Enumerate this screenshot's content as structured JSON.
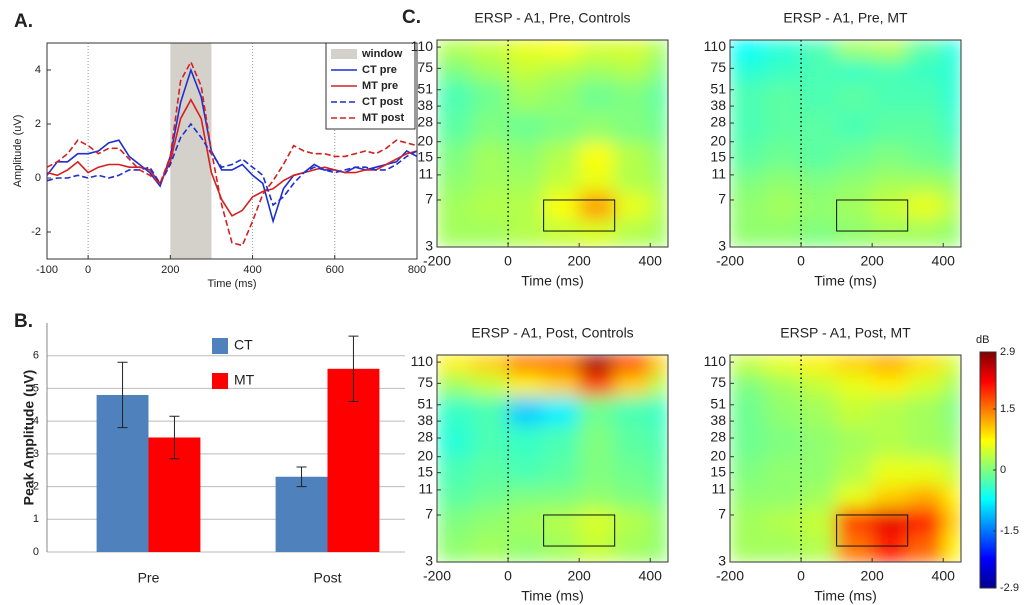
{
  "chart_data": [
    {
      "type": "line",
      "panel_label": "A.",
      "xlabel": "Time (ms)",
      "ylabel": "Amplitude (uV)",
      "xlim": [
        -100,
        800
      ],
      "xticks": [
        -100,
        0,
        200,
        400,
        600,
        800
      ],
      "ylim": [
        -3,
        5
      ],
      "yticks": [
        -2,
        0,
        2,
        4
      ],
      "vlines": [
        0,
        400,
        600
      ],
      "window": {
        "name": "window",
        "range": [
          200,
          300
        ],
        "color": "#d4d0ca"
      },
      "x": [
        -100,
        -75,
        -50,
        -25,
        0,
        25,
        50,
        75,
        100,
        125,
        150,
        175,
        200,
        225,
        250,
        275,
        300,
        325,
        350,
        375,
        400,
        425,
        450,
        475,
        500,
        525,
        550,
        575,
        600,
        625,
        650,
        675,
        700,
        725,
        750,
        775,
        800
      ],
      "series": [
        {
          "name": "CT pre",
          "color": "#1f2fd0",
          "dashed": false,
          "values": [
            0.1,
            0.6,
            0.6,
            0.9,
            0.9,
            1.0,
            1.3,
            1.4,
            0.8,
            0.5,
            0.2,
            -0.3,
            0.8,
            2.8,
            4.0,
            3.0,
            1.0,
            0.3,
            0.3,
            0.5,
            0.1,
            -0.2,
            -1.6,
            -0.4,
            0.1,
            0.2,
            0.5,
            0.3,
            0.3,
            0.2,
            0.4,
            0.3,
            0.4,
            0.5,
            0.6,
            1.0,
            0.8
          ]
        },
        {
          "name": "MT pre",
          "color": "#d42020",
          "dashed": false,
          "values": [
            0.2,
            0.1,
            0.3,
            0.6,
            0.2,
            0.4,
            0.5,
            0.5,
            0.4,
            0.4,
            0.3,
            -0.2,
            0.6,
            2.2,
            2.9,
            2.2,
            0.2,
            -0.8,
            -1.4,
            -1.2,
            -0.7,
            -0.5,
            -0.4,
            -0.1,
            0.1,
            0.2,
            0.3,
            0.4,
            0.3,
            0.2,
            0.2,
            0.3,
            0.3,
            0.5,
            0.7,
            0.9,
            1.0
          ]
        },
        {
          "name": "CT post",
          "color": "#1f2fd0",
          "dashed": true,
          "values": [
            -0.1,
            0,
            0,
            0.1,
            0,
            0.1,
            0,
            0.1,
            0.3,
            0.3,
            0.4,
            -0.2,
            0.5,
            1.5,
            2.0,
            1.5,
            0.9,
            0.4,
            0.5,
            0.7,
            0.4,
            0.1,
            -1.0,
            -0.7,
            -0.2,
            0.2,
            0.4,
            0.3,
            0.2,
            0.3,
            0.4,
            0.4,
            0.3,
            0.3,
            0.5,
            0.8,
            1.0
          ]
        },
        {
          "name": "MT post",
          "color": "#d42020",
          "dashed": true,
          "values": [
            0.4,
            0.6,
            0.9,
            1.4,
            1.2,
            0.9,
            1.1,
            1.1,
            0.7,
            0.3,
            0.1,
            -0.2,
            0.8,
            3.6,
            4.3,
            3.4,
            1.0,
            -1.0,
            -2.4,
            -2.5,
            -1.6,
            -0.6,
            -0.1,
            0.5,
            1.2,
            1.0,
            0.9,
            0.9,
            0.8,
            0.8,
            0.9,
            1.0,
            0.9,
            1.1,
            1.4,
            1.3,
            1.2
          ]
        }
      ]
    },
    {
      "type": "bar",
      "panel_label": "B.",
      "ylabel": "Peak Amplitude (uV)",
      "categories": [
        "Pre",
        "Post"
      ],
      "ylim": [
        0,
        7
      ],
      "yticks": [
        0,
        1,
        2,
        3,
        4,
        5,
        6
      ],
      "grid": true,
      "series": [
        {
          "name": "CT",
          "color": "#4f81bd",
          "values": [
            4.8,
            2.3
          ],
          "errors": [
            1.0,
            0.3
          ]
        },
        {
          "name": "MT",
          "color": "#ff0000",
          "values": [
            3.5,
            5.6
          ],
          "errors": [
            0.65,
            1.0
          ]
        }
      ]
    },
    {
      "type": "heatmap",
      "panel_label": "C.",
      "title": "ERSP - A1, Pre, Controls",
      "xlabel": "Time (ms)",
      "xlim": [
        -200,
        450
      ],
      "xticks": [
        -200,
        0,
        200,
        400
      ],
      "ylim": [
        3,
        125
      ],
      "yticks": [
        3,
        7,
        11,
        15,
        20,
        28,
        38,
        51,
        75,
        110
      ],
      "log_y": true,
      "vline": 0,
      "box": {
        "x": [
          100,
          300
        ],
        "y": [
          4,
          7
        ]
      },
      "clim": [
        -2.9,
        2.9
      ],
      "x_edges": [
        -200,
        -100,
        0,
        100,
        200,
        300,
        400,
        450
      ],
      "y_edges": [
        3,
        5,
        8,
        12,
        20,
        35,
        60,
        90,
        125
      ],
      "z": [
        [
          0.2,
          0.2,
          0.3,
          0.4,
          0.5,
          0.3,
          0.2
        ],
        [
          0.2,
          0.3,
          0.3,
          0.7,
          1.3,
          0.6,
          0.3
        ],
        [
          0.1,
          0.2,
          0.2,
          0.4,
          0.6,
          0.3,
          0.2
        ],
        [
          0,
          0.2,
          0.1,
          0.3,
          0.7,
          0.3,
          0.1
        ],
        [
          -0.2,
          0,
          -0.1,
          0,
          0.1,
          0,
          -0.1
        ],
        [
          -0.3,
          -0.1,
          0.2,
          0.1,
          -0.1,
          0,
          -0.2
        ],
        [
          0,
          0.2,
          0.4,
          0.3,
          0.2,
          0.3,
          0
        ],
        [
          0.3,
          0.4,
          0.6,
          0.7,
          0.5,
          0.5,
          0.2
        ]
      ]
    },
    {
      "type": "heatmap",
      "title": "ERSP - A1, Pre, MT",
      "xlabel": "Time (ms)",
      "xlim": [
        -200,
        450
      ],
      "xticks": [
        -200,
        0,
        200,
        400
      ],
      "ylim": [
        3,
        125
      ],
      "yticks": [
        3,
        7,
        11,
        15,
        20,
        28,
        38,
        51,
        75,
        110
      ],
      "log_y": true,
      "vline": 0,
      "box": {
        "x": [
          100,
          300
        ],
        "y": [
          4,
          7
        ]
      },
      "clim": [
        -2.9,
        2.9
      ],
      "x_edges": [
        -200,
        -100,
        0,
        100,
        200,
        300,
        400,
        450
      ],
      "y_edges": [
        3,
        5,
        8,
        12,
        20,
        35,
        60,
        90,
        125
      ],
      "z": [
        [
          0.1,
          0.1,
          0,
          0.1,
          0.2,
          0.2,
          0.1
        ],
        [
          0.1,
          0.2,
          0.1,
          0.2,
          0.4,
          0.6,
          0.3
        ],
        [
          0,
          0.1,
          0,
          0.1,
          0.2,
          0.2,
          0.1
        ],
        [
          -0.2,
          -0.1,
          -0.2,
          -0.1,
          0,
          -0.1,
          -0.2
        ],
        [
          -0.3,
          -0.2,
          -0.2,
          -0.3,
          -0.2,
          -0.2,
          -0.4
        ],
        [
          -0.3,
          -0.2,
          -0.3,
          -0.2,
          -0.3,
          -0.3,
          -0.5
        ],
        [
          -0.5,
          -0.4,
          -0.3,
          -0.4,
          -0.3,
          -0.4,
          -0.5
        ],
        [
          -0.7,
          -0.5,
          -0.3,
          0.2,
          0.3,
          -0.2,
          -0.6
        ]
      ]
    },
    {
      "type": "heatmap",
      "title": "ERSP - A1, Post, Controls",
      "xlabel": "Time (ms)",
      "xlim": [
        -200,
        450
      ],
      "xticks": [
        -200,
        0,
        200,
        400
      ],
      "ylim": [
        3,
        125
      ],
      "yticks": [
        3,
        7,
        11,
        15,
        20,
        28,
        38,
        51,
        75,
        110
      ],
      "log_y": true,
      "vline": 0,
      "box": {
        "x": [
          100,
          300
        ],
        "y": [
          4,
          7
        ]
      },
      "clim": [
        -2.9,
        2.9
      ],
      "x_edges": [
        -200,
        -100,
        0,
        100,
        200,
        300,
        400,
        450
      ],
      "y_edges": [
        3,
        5,
        8,
        12,
        20,
        35,
        60,
        90,
        125
      ],
      "z": [
        [
          0.1,
          0.2,
          0.1,
          0.2,
          0.4,
          0.2,
          0.1
        ],
        [
          0,
          0.1,
          0.2,
          0.3,
          0.5,
          0.3,
          0.1
        ],
        [
          -0.2,
          -0.1,
          0,
          0,
          0.1,
          0,
          -0.1
        ],
        [
          -0.3,
          -0.2,
          -0.3,
          -0.2,
          0,
          -0.1,
          -0.2
        ],
        [
          -0.5,
          -0.3,
          -0.4,
          -0.3,
          0,
          -0.2,
          -0.3
        ],
        [
          -0.4,
          -0.3,
          -1.0,
          -0.8,
          -0.1,
          -0.3,
          -0.4
        ],
        [
          0.2,
          0.4,
          0.8,
          1.0,
          1.8,
          1.0,
          0.3
        ],
        [
          0.8,
          1.0,
          1.5,
          1.6,
          2.7,
          1.8,
          1.0
        ]
      ]
    },
    {
      "type": "heatmap",
      "title": "ERSP - A1, Post, MT",
      "xlabel": "Time (ms)",
      "xlim": [
        -200,
        450
      ],
      "xticks": [
        -200,
        0,
        200,
        400
      ],
      "ylim": [
        3,
        125
      ],
      "yticks": [
        3,
        7,
        11,
        15,
        20,
        28,
        38,
        51,
        75,
        110
      ],
      "log_y": true,
      "vline": 0,
      "box": {
        "x": [
          100,
          300
        ],
        "y": [
          4,
          7
        ]
      },
      "clim": [
        -2.9,
        2.9
      ],
      "x_edges": [
        -200,
        -100,
        0,
        100,
        200,
        300,
        400,
        450
      ],
      "y_edges": [
        3,
        5,
        8,
        12,
        20,
        35,
        60,
        90,
        125
      ],
      "z": [
        [
          0.2,
          0.2,
          0.3,
          1.5,
          2.0,
          1.6,
          0.8
        ],
        [
          0.2,
          0.3,
          0.4,
          1.8,
          2.3,
          2.0,
          1.0
        ],
        [
          0.1,
          0.1,
          0.2,
          0.6,
          1.0,
          1.2,
          0.8
        ],
        [
          0,
          0.1,
          0.1,
          0.3,
          0.6,
          0.6,
          0.4
        ],
        [
          -0.1,
          0,
          0.1,
          0.2,
          0.3,
          0.2,
          0.1
        ],
        [
          -0.1,
          0.1,
          0.2,
          0.4,
          0.3,
          0.2,
          0
        ],
        [
          0,
          0.2,
          0.4,
          0.6,
          0.8,
          0.5,
          0.2
        ],
        [
          0.4,
          0.6,
          0.8,
          1.0,
          1.2,
          0.9,
          0.5
        ]
      ],
      "colorbar": {
        "label": "dB",
        "ticks": [
          2.9,
          1.5,
          0,
          -1.5,
          -2.9
        ]
      }
    }
  ]
}
